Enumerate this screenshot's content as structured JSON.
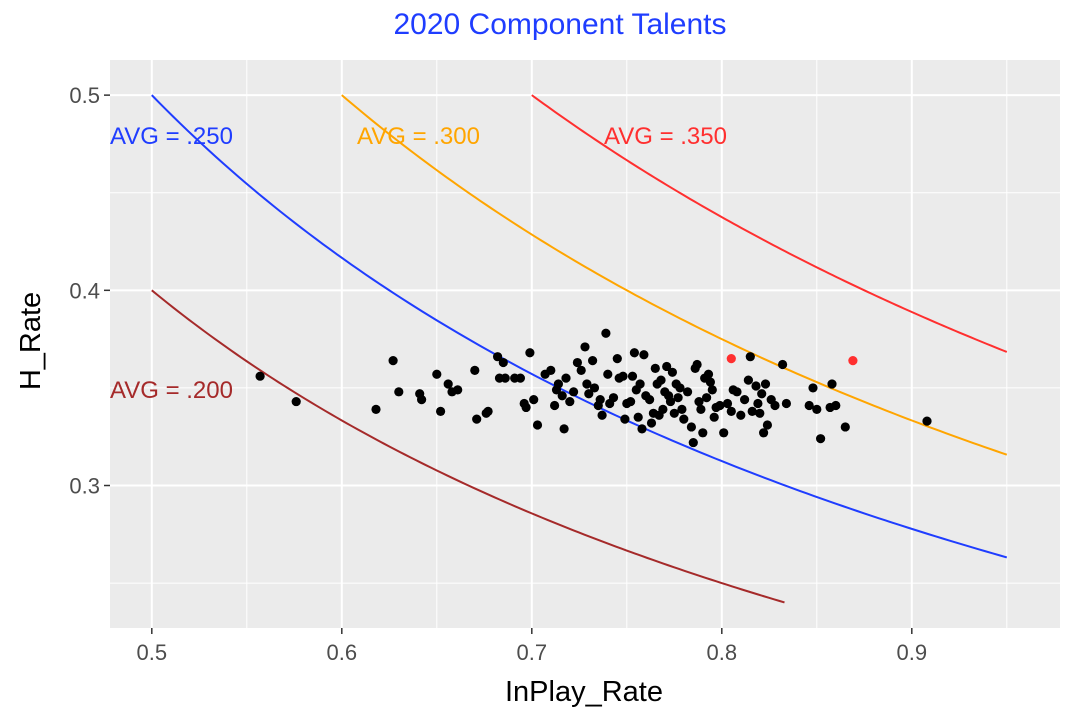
{
  "chart_data": {
    "type": "scatter",
    "title": "2020 Component Talents",
    "title_color": "#1f3dff",
    "xlabel": "InPlay_Rate",
    "ylabel": "H_Rate",
    "xlim": [
      0.478,
      0.978
    ],
    "ylim": [
      0.227,
      0.518
    ],
    "x_ticks": [
      0.5,
      0.6,
      0.7,
      0.8,
      0.9
    ],
    "x_tick_labels": [
      "0.5",
      "0.6",
      "0.7",
      "0.8",
      "0.9"
    ],
    "y_ticks": [
      0.3,
      0.4,
      0.5
    ],
    "y_tick_labels": [
      "0.3",
      "0.4",
      "0.5"
    ],
    "grid": true,
    "panel_background": "#ebebeb",
    "grid_color": "#ffffff",
    "curves": [
      {
        "label": "AVG = .200",
        "avg": 0.2,
        "x_range": [
          0.5,
          0.833
        ],
        "color": "#a52a2a",
        "label_x": 0.478,
        "label_y": 0.349
      },
      {
        "label": "AVG = .250",
        "avg": 0.25,
        "x_range": [
          0.5,
          0.95
        ],
        "color": "#1f3dff",
        "label_x": 0.478,
        "label_y": 0.479
      },
      {
        "label": "AVG = .300",
        "avg": 0.3,
        "x_range": [
          0.6,
          0.95
        ],
        "color": "#ffa500",
        "label_x": 0.608,
        "label_y": 0.479
      },
      {
        "label": "AVG = .350",
        "avg": 0.35,
        "x_range": [
          0.7,
          0.95
        ],
        "color": "#ff2f2f",
        "label_x": 0.738,
        "label_y": 0.479
      }
    ],
    "series": [
      {
        "color": "#000000",
        "points": [
          [
            0.557,
            0.356
          ],
          [
            0.576,
            0.343
          ],
          [
            0.618,
            0.339
          ],
          [
            0.627,
            0.364
          ],
          [
            0.63,
            0.348
          ],
          [
            0.641,
            0.347
          ],
          [
            0.642,
            0.344
          ],
          [
            0.65,
            0.357
          ],
          [
            0.652,
            0.338
          ],
          [
            0.656,
            0.352
          ],
          [
            0.658,
            0.348
          ],
          [
            0.661,
            0.349
          ],
          [
            0.67,
            0.359
          ],
          [
            0.671,
            0.334
          ],
          [
            0.676,
            0.337
          ],
          [
            0.677,
            0.338
          ],
          [
            0.682,
            0.366
          ],
          [
            0.683,
            0.355
          ],
          [
            0.685,
            0.363
          ],
          [
            0.686,
            0.355
          ],
          [
            0.691,
            0.355
          ],
          [
            0.694,
            0.355
          ],
          [
            0.696,
            0.342
          ],
          [
            0.697,
            0.34
          ],
          [
            0.699,
            0.368
          ],
          [
            0.701,
            0.344
          ],
          [
            0.703,
            0.331
          ],
          [
            0.707,
            0.357
          ],
          [
            0.71,
            0.359
          ],
          [
            0.712,
            0.341
          ],
          [
            0.713,
            0.349
          ],
          [
            0.714,
            0.352
          ],
          [
            0.716,
            0.346
          ],
          [
            0.717,
            0.329
          ],
          [
            0.718,
            0.355
          ],
          [
            0.72,
            0.343
          ],
          [
            0.722,
            0.348
          ],
          [
            0.724,
            0.363
          ],
          [
            0.726,
            0.359
          ],
          [
            0.728,
            0.371
          ],
          [
            0.729,
            0.352
          ],
          [
            0.73,
            0.347
          ],
          [
            0.732,
            0.364
          ],
          [
            0.733,
            0.35
          ],
          [
            0.735,
            0.341
          ],
          [
            0.736,
            0.344
          ],
          [
            0.737,
            0.336
          ],
          [
            0.739,
            0.378
          ],
          [
            0.74,
            0.357
          ],
          [
            0.741,
            0.342
          ],
          [
            0.743,
            0.345
          ],
          [
            0.745,
            0.365
          ],
          [
            0.746,
            0.355
          ],
          [
            0.748,
            0.356
          ],
          [
            0.749,
            0.334
          ],
          [
            0.75,
            0.342
          ],
          [
            0.752,
            0.343
          ],
          [
            0.753,
            0.356
          ],
          [
            0.754,
            0.368
          ],
          [
            0.755,
            0.349
          ],
          [
            0.756,
            0.335
          ],
          [
            0.757,
            0.352
          ],
          [
            0.758,
            0.329
          ],
          [
            0.759,
            0.367
          ],
          [
            0.76,
            0.346
          ],
          [
            0.762,
            0.344
          ],
          [
            0.763,
            0.332
          ],
          [
            0.764,
            0.337
          ],
          [
            0.765,
            0.36
          ],
          [
            0.766,
            0.352
          ],
          [
            0.767,
            0.336
          ],
          [
            0.768,
            0.354
          ],
          [
            0.769,
            0.339
          ],
          [
            0.77,
            0.348
          ],
          [
            0.771,
            0.361
          ],
          [
            0.772,
            0.346
          ],
          [
            0.773,
            0.343
          ],
          [
            0.774,
            0.358
          ],
          [
            0.775,
            0.337
          ],
          [
            0.776,
            0.352
          ],
          [
            0.777,
            0.345
          ],
          [
            0.778,
            0.35
          ],
          [
            0.779,
            0.339
          ],
          [
            0.78,
            0.334
          ],
          [
            0.782,
            0.348
          ],
          [
            0.784,
            0.33
          ],
          [
            0.785,
            0.322
          ],
          [
            0.786,
            0.36
          ],
          [
            0.787,
            0.362
          ],
          [
            0.788,
            0.343
          ],
          [
            0.789,
            0.339
          ],
          [
            0.79,
            0.327
          ],
          [
            0.791,
            0.355
          ],
          [
            0.792,
            0.345
          ],
          [
            0.793,
            0.357
          ],
          [
            0.794,
            0.353
          ],
          [
            0.795,
            0.349
          ],
          [
            0.796,
            0.335
          ],
          [
            0.797,
            0.34
          ],
          [
            0.799,
            0.341
          ],
          [
            0.801,
            0.327
          ],
          [
            0.803,
            0.342
          ],
          [
            0.805,
            0.338
          ],
          [
            0.806,
            0.349
          ],
          [
            0.808,
            0.348
          ],
          [
            0.81,
            0.336
          ],
          [
            0.812,
            0.344
          ],
          [
            0.814,
            0.354
          ],
          [
            0.815,
            0.366
          ],
          [
            0.816,
            0.338
          ],
          [
            0.818,
            0.351
          ],
          [
            0.819,
            0.342
          ],
          [
            0.82,
            0.337
          ],
          [
            0.821,
            0.347
          ],
          [
            0.822,
            0.327
          ],
          [
            0.823,
            0.352
          ],
          [
            0.824,
            0.331
          ],
          [
            0.826,
            0.344
          ],
          [
            0.828,
            0.341
          ],
          [
            0.832,
            0.362
          ],
          [
            0.834,
            0.342
          ],
          [
            0.846,
            0.341
          ],
          [
            0.848,
            0.35
          ],
          [
            0.85,
            0.339
          ],
          [
            0.852,
            0.324
          ],
          [
            0.857,
            0.34
          ],
          [
            0.858,
            0.352
          ],
          [
            0.86,
            0.341
          ],
          [
            0.865,
            0.33
          ],
          [
            0.908,
            0.333
          ]
        ]
      },
      {
        "color": "#ff2f2f",
        "points": [
          [
            0.805,
            0.365
          ],
          [
            0.869,
            0.364
          ]
        ]
      }
    ]
  }
}
